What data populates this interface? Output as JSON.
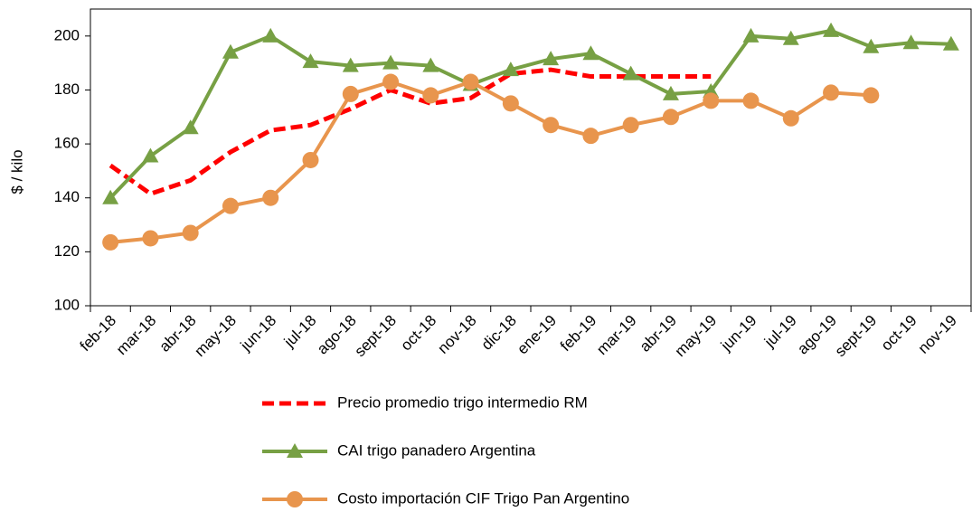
{
  "chart_data": {
    "type": "line",
    "ylabel": "$ / kilo",
    "categories": [
      "feb-18",
      "mar-18",
      "abr-18",
      "may-18",
      "jun-18",
      "jul-18",
      "ago-18",
      "sept-18",
      "oct-18",
      "nov-18",
      "dic-18",
      "ene-19",
      "feb-19",
      "mar-19",
      "abr-19",
      "may-19",
      "jun-19",
      "jul-19",
      "ago-19",
      "sept-19",
      "oct-19",
      "nov-19"
    ],
    "series": [
      {
        "name": "Precio promedio trigo intermedio RM",
        "color": "#ff0000",
        "style": "dashed",
        "values": [
          152,
          141.5,
          146.5,
          157,
          165,
          167,
          173,
          180,
          175,
          177,
          186,
          187.5,
          185,
          185,
          185,
          185,
          null,
          null,
          null,
          null,
          null,
          null
        ]
      },
      {
        "name": "CAI trigo panadero Argentina",
        "color": "#77a044",
        "marker": "triangle",
        "values": [
          140,
          155.5,
          166,
          194,
          200,
          190.5,
          189,
          190,
          189,
          182,
          187.5,
          191.5,
          193.5,
          186,
          178.5,
          179.5,
          200,
          199,
          202,
          196,
          197.5,
          197
        ]
      },
      {
        "name": "Costo importación CIF Trigo Pan Argentino",
        "color": "#e8954d",
        "marker": "circle",
        "values": [
          123.5,
          125,
          127,
          137,
          140,
          154,
          178.5,
          183,
          178,
          183,
          175,
          167,
          163,
          167,
          170,
          176,
          176,
          169.5,
          179,
          178,
          null,
          null
        ]
      }
    ],
    "ylim": [
      100,
      210
    ],
    "yticks": [
      100,
      120,
      140,
      160,
      180,
      200
    ],
    "legend": "bottom"
  }
}
